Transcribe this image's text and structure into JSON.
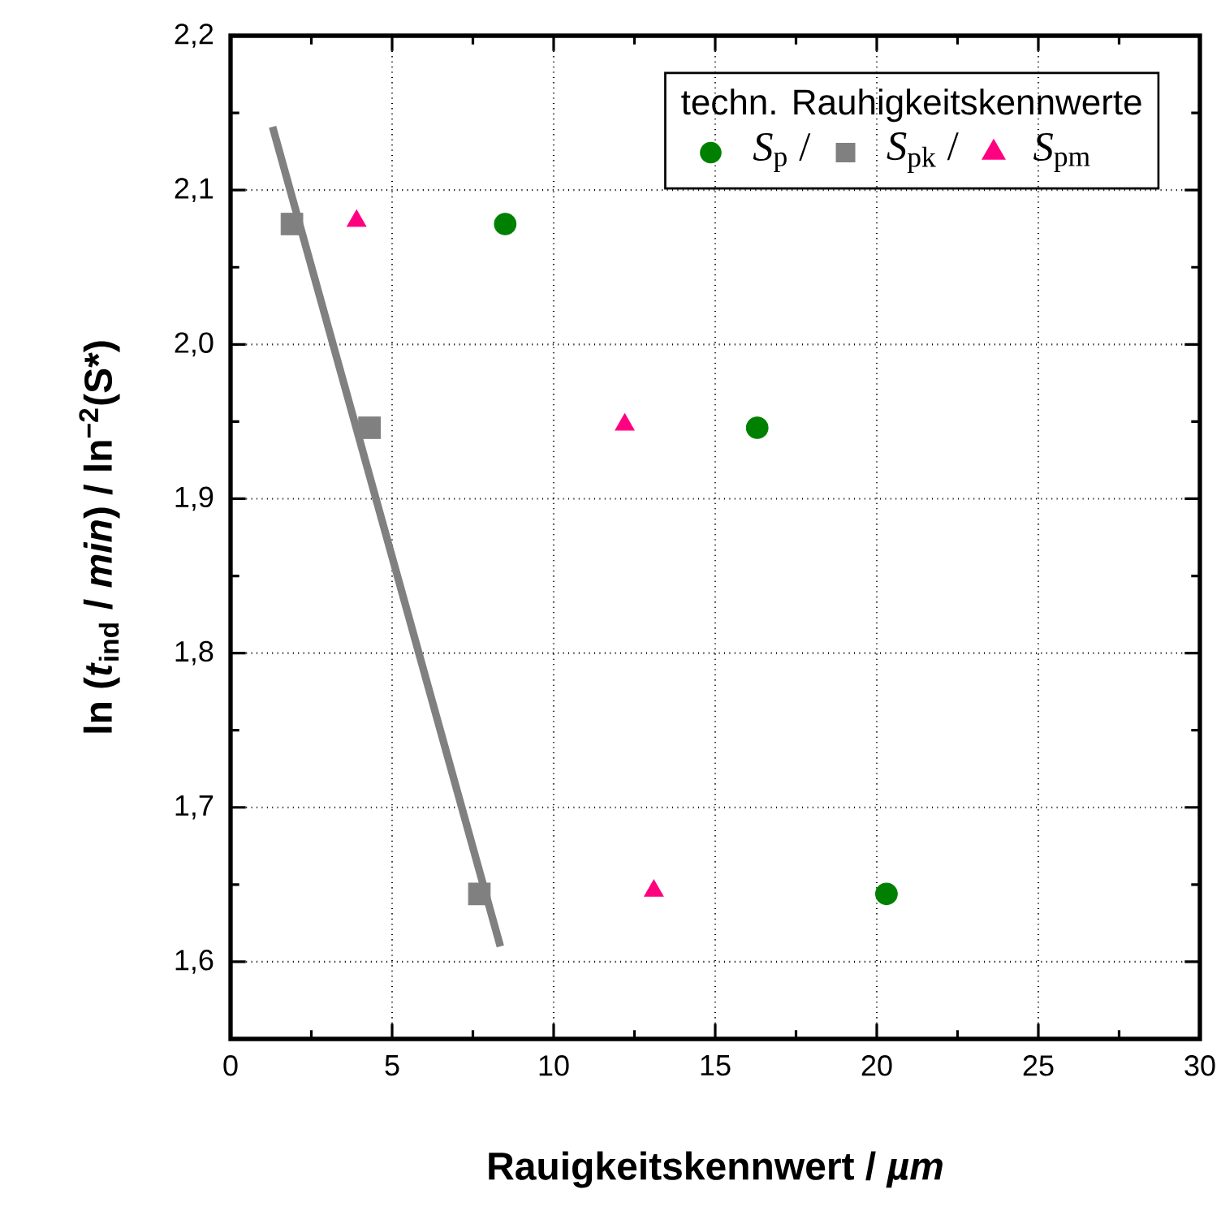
{
  "chart_data": {
    "type": "scatter",
    "xlabel": "Rauigkeitskennwert / *µm*",
    "ylabel": "ln (*t*$_{ind}$ / *min*) / ln$^{−2}$(S*)",
    "legend_title": "techn. Rauhigkeitskennwerte",
    "xlim": [
      0,
      30
    ],
    "ylim": [
      1.55,
      2.2
    ],
    "xticks": [
      0,
      5,
      10,
      15,
      20,
      25,
      30
    ],
    "yticks": [
      {
        "value": 1.6,
        "label": "1,6"
      },
      {
        "value": 1.7,
        "label": "1,7"
      },
      {
        "value": 1.8,
        "label": "1,8"
      },
      {
        "value": 1.9,
        "label": "1,9"
      },
      {
        "value": 2.0,
        "label": "2,0"
      },
      {
        "value": 2.1,
        "label": "2,1"
      },
      {
        "value": 2.2,
        "label": "2,2"
      }
    ],
    "grid": true,
    "legend": "top right",
    "series": [
      {
        "name": "*S*$_{p}$ /",
        "color": "#008000",
        "marker": "circle",
        "x": [
          8.5,
          16.3,
          20.3
        ],
        "values": [
          2.078,
          1.946,
          1.644
        ]
      },
      {
        "name": "*S*$_{pk}$ /",
        "color": "#808080",
        "marker": "square",
        "x": [
          1.9,
          4.3,
          7.7
        ],
        "values": [
          2.078,
          1.946,
          1.644
        ]
      },
      {
        "name": "*S*$_{pm}$",
        "color": "#ff0080",
        "marker": "triangle",
        "x": [
          3.9,
          12.2,
          13.1
        ],
        "values": [
          2.08,
          1.948,
          1.646
        ]
      },
      {
        "type": "line",
        "color": "#808080",
        "marker": "none",
        "x": [
          1.3,
          8.35
        ],
        "values": [
          2.141,
          1.61
        ]
      }
    ]
  }
}
